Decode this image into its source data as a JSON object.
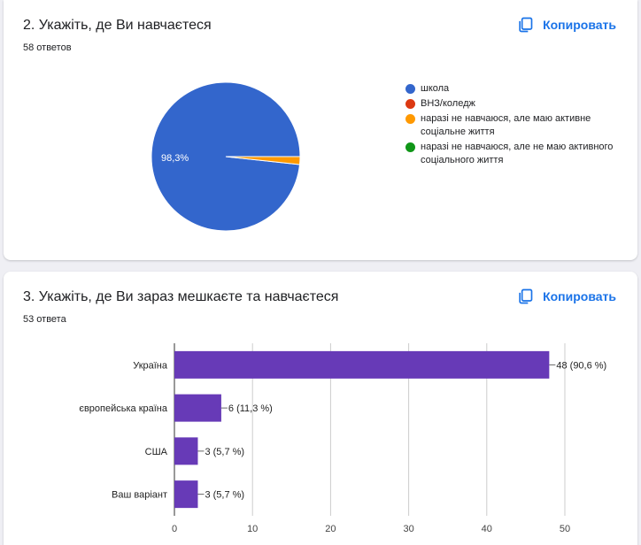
{
  "q2": {
    "title": "2. Укажіть, де Ви навчаєтеся",
    "count": "58 ответов",
    "copy_label": "Копировать",
    "chart_data": {
      "type": "pie",
      "slices": [
        {
          "label": "школа",
          "value": 98.3,
          "color": "#3366cc",
          "data_label": "98,3%"
        },
        {
          "label": "ВНЗ/коледж",
          "value": 0,
          "color": "#dc3912"
        },
        {
          "label": "наразі не навчаюся, але маю активне соціальне життя",
          "value": 1.7,
          "color": "#ff9900"
        },
        {
          "label": "наразі не навчаюся, але не маю активного соціального життя",
          "value": 0,
          "color": "#109618"
        }
      ],
      "legend_position": "right"
    }
  },
  "q3": {
    "title": "3. Укажіть, де Ви зараз мешкаєте та навчаєтеся",
    "count": "53 ответа",
    "copy_label": "Копировать",
    "chart_data": {
      "type": "bar",
      "orientation": "horizontal",
      "categories": [
        "Україна",
        "європейська країна",
        "США",
        "Ваш варіант"
      ],
      "values": [
        48,
        6,
        3,
        3
      ],
      "data_labels": [
        "48 (90,6 %)",
        "6 (11,3 %)",
        "3 (5,7 %)",
        "3 (5,7 %)"
      ],
      "bar_color": "#673ab7",
      "xlim": [
        0,
        50
      ],
      "xticks": [
        0,
        10,
        20,
        30,
        40,
        50
      ],
      "grid": true
    }
  }
}
